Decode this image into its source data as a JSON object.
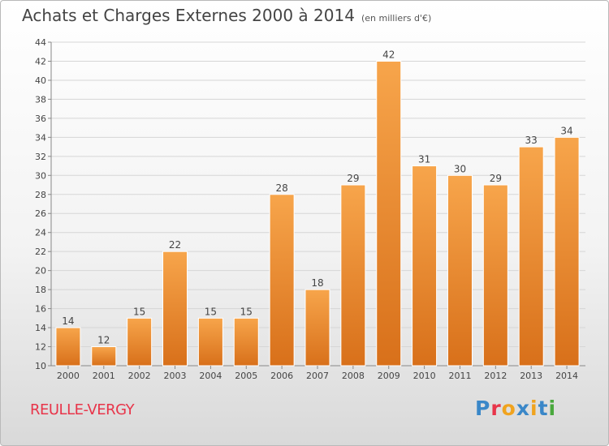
{
  "header": {
    "title": "Achats et Charges Externes 2000 à 2014",
    "unit": "(en milliers d'€)"
  },
  "footer": {
    "commune": "REULLE-VERGY",
    "logo": "Proxiti",
    "logo_colors": [
      "#3a87c8",
      "#e8354a",
      "#f0a31e",
      "#3a87c8",
      "#f0a31e",
      "#3a87c8",
      "#49a83d"
    ]
  },
  "chart_data": {
    "type": "bar",
    "categories": [
      "2000",
      "2001",
      "2002",
      "2003",
      "2004",
      "2005",
      "2006",
      "2007",
      "2008",
      "2009",
      "2010",
      "2011",
      "2012",
      "2013",
      "2014"
    ],
    "values": [
      14,
      12,
      15,
      22,
      15,
      15,
      28,
      18,
      29,
      42,
      31,
      30,
      29,
      33,
      34
    ],
    "ylim": [
      10,
      44
    ],
    "yticks": [
      10,
      12,
      14,
      16,
      18,
      20,
      22,
      24,
      26,
      28,
      30,
      32,
      34,
      36,
      38,
      40,
      42,
      44
    ],
    "grid": true,
    "bar_color_top": "#f7a54b",
    "bar_color_bottom": "#d8701a"
  }
}
